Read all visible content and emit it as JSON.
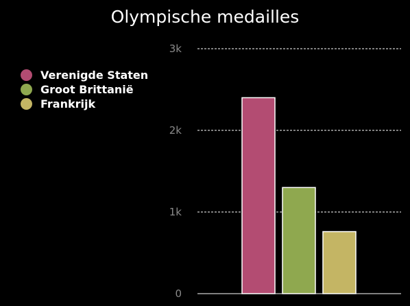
{
  "chart_data": {
    "type": "bar",
    "title": "Olympische medailles",
    "xlabel": "",
    "ylabel": "",
    "ylim": [
      0,
      3000
    ],
    "yticks": [
      {
        "value": 0,
        "label": "0"
      },
      {
        "value": 1000,
        "label": "1k"
      },
      {
        "value": 2000,
        "label": "2k"
      },
      {
        "value": 3000,
        "label": "3k"
      }
    ],
    "grid": true,
    "legend_position": "left",
    "series": [
      {
        "name": "Verenigde Staten",
        "value": 2400,
        "color": "#b34c72"
      },
      {
        "name": "Groot Brittanië",
        "value": 1300,
        "color": "#8fa84f"
      },
      {
        "name": "Frankrijk",
        "value": 760,
        "color": "#c4b564"
      }
    ],
    "colors": {
      "background": "#000000",
      "gridline": "#ffffff",
      "tick_label": "#8a8a8a",
      "bar_border": "#ffffff"
    }
  }
}
